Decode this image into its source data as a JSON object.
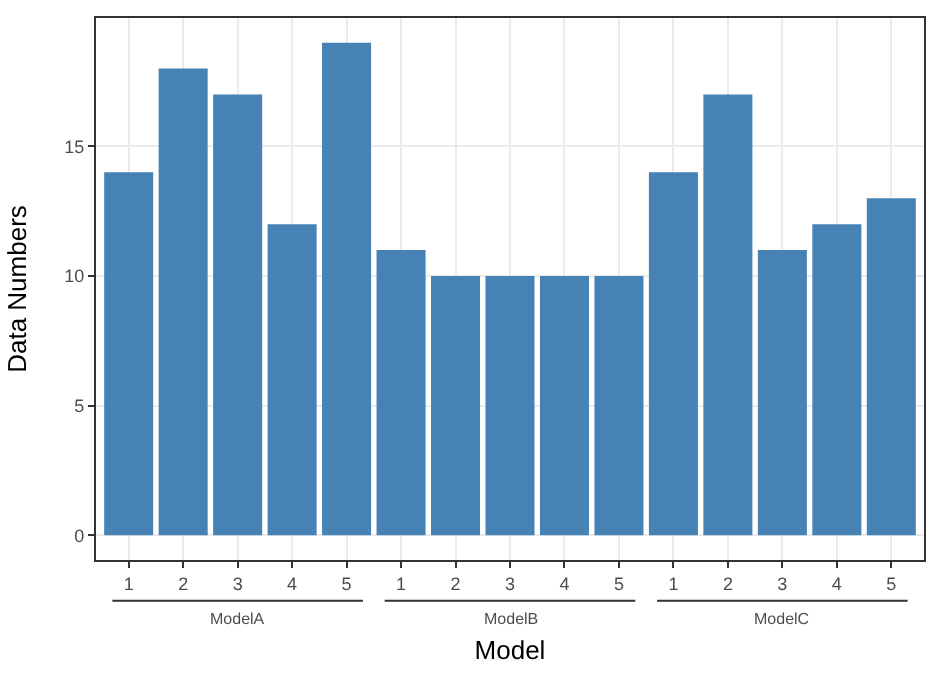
{
  "chart_data": {
    "type": "bar",
    "xlabel": "Model",
    "ylabel": "Data Numbers",
    "categories": [
      "1",
      "2",
      "3",
      "4",
      "5",
      "1",
      "2",
      "3",
      "4",
      "5",
      "1",
      "2",
      "3",
      "4",
      "5"
    ],
    "values": [
      14,
      18,
      17,
      12,
      19,
      11,
      10,
      10,
      10,
      10,
      14,
      17,
      11,
      12,
      13
    ],
    "color": "#4682b4",
    "ylim": [
      -0.95,
      19.95
    ],
    "yticks": [
      0,
      5,
      10,
      15
    ],
    "grid": true,
    "annotations": [
      "ModelA",
      "ModelB",
      "ModelC"
    ]
  }
}
